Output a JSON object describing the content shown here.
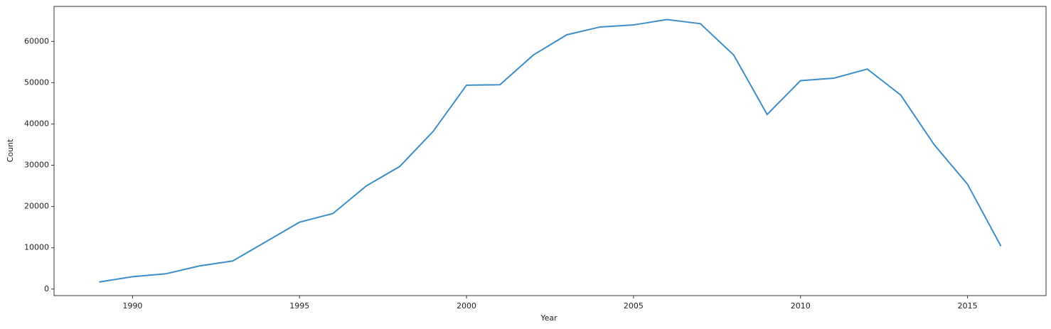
{
  "chart_data": {
    "type": "line",
    "x_label": "Year",
    "y_label": "Count",
    "x": [
      1989,
      1990,
      1991,
      1992,
      1993,
      1994,
      1995,
      1996,
      1997,
      1998,
      1999,
      2000,
      2001,
      2002,
      2003,
      2004,
      2005,
      2006,
      2007,
      2008,
      2009,
      2010,
      2011,
      2012,
      2013,
      2014,
      2015,
      2016
    ],
    "series": [
      {
        "color": "#3d8ec9",
        "values": [
          1700,
          3000,
          3700,
          5600,
          6800,
          11500,
          16200,
          18300,
          25000,
          29700,
          38200,
          49400,
          49500,
          56700,
          61600,
          63500,
          64000,
          65300,
          64300,
          56700,
          42300,
          50500,
          51100,
          53300,
          47000,
          35000,
          25400,
          10400
        ]
      }
    ],
    "xlim": [
      1987.65,
      2017.35
    ],
    "xticks": [
      1990,
      1995,
      2000,
      2005,
      2010,
      2015
    ],
    "ylim": [
      -1585,
      68485
    ],
    "yticks": [
      0,
      10000,
      20000,
      30000,
      40000,
      50000,
      60000
    ],
    "grid": false
  }
}
